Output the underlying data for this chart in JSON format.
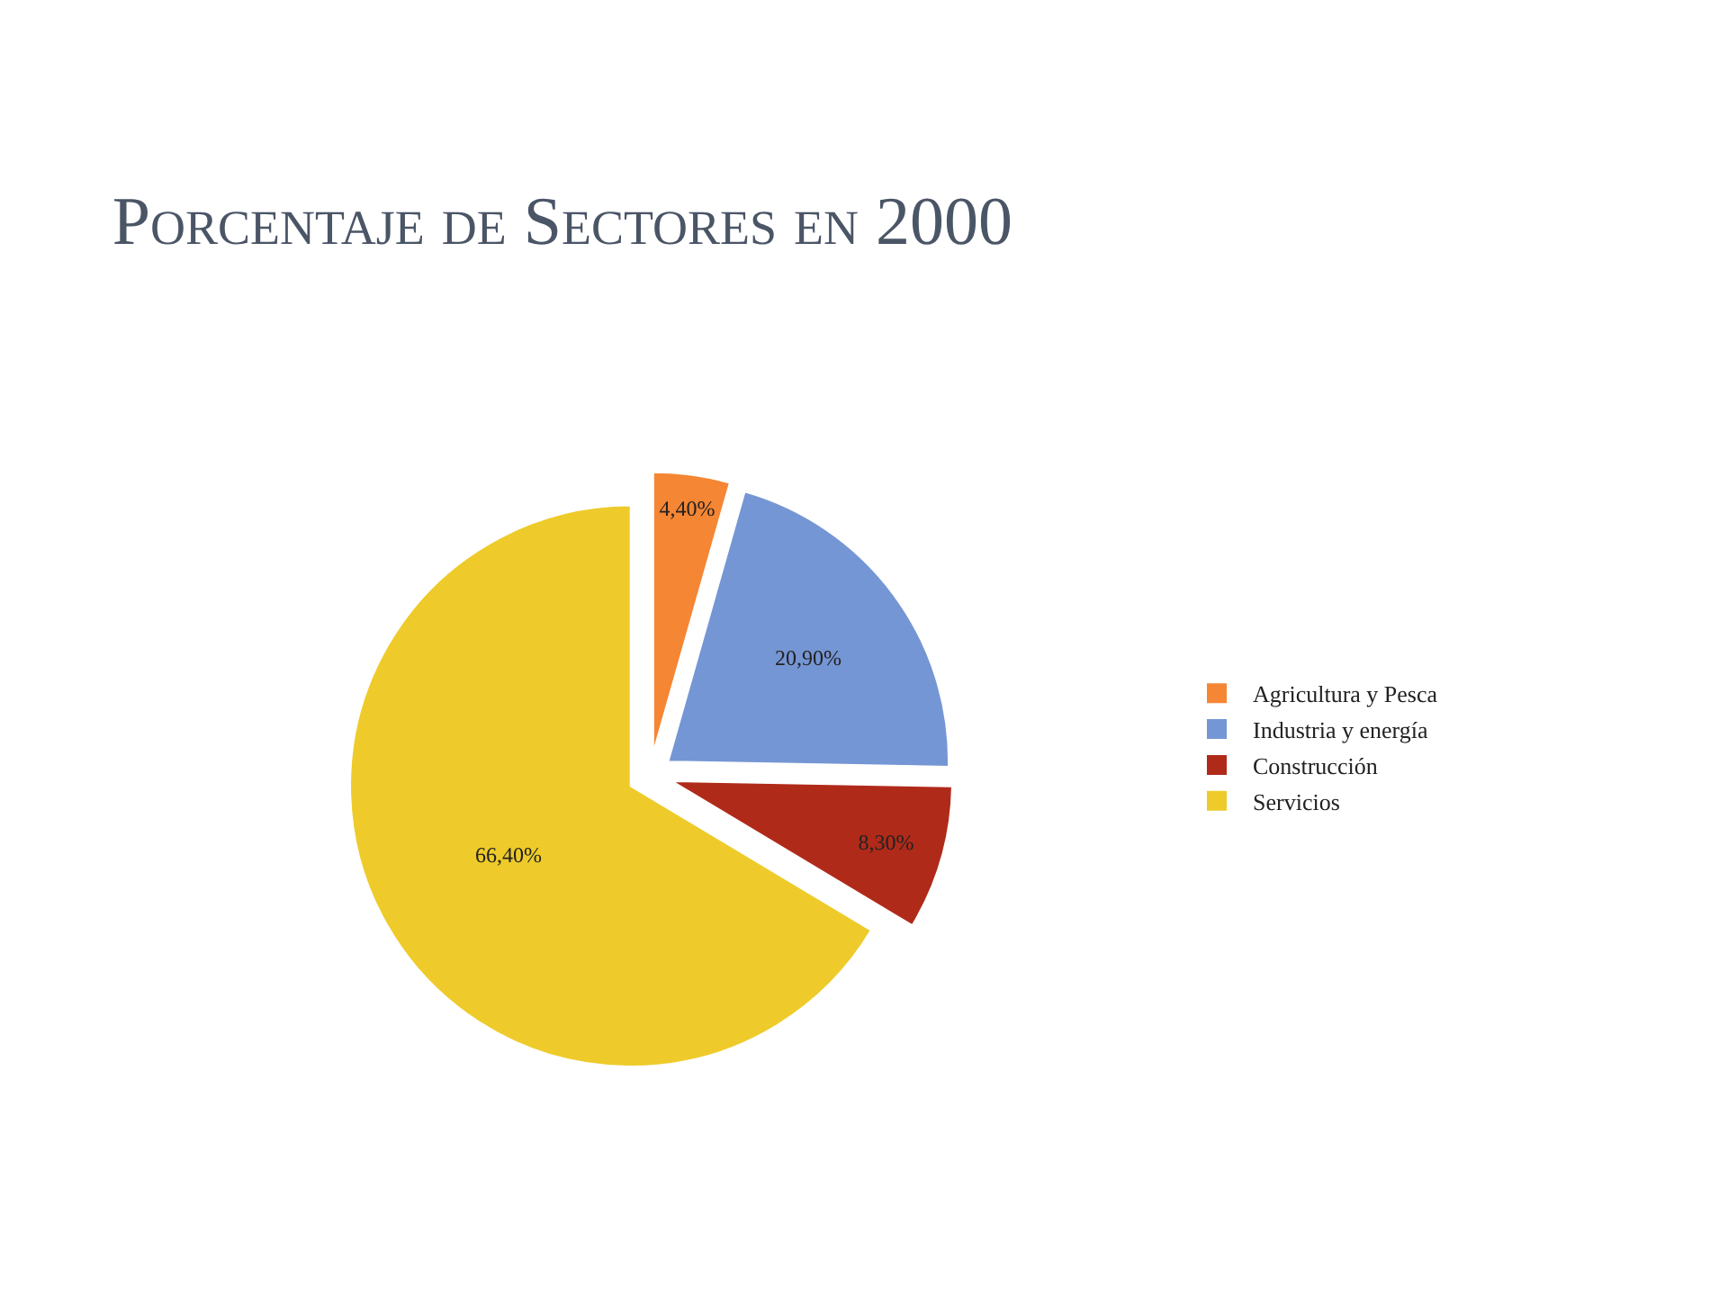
{
  "chart_data": {
    "type": "pie",
    "title": "Porcentaje de Sectores en 2000",
    "categories": [
      "Agricultura y Pesca",
      "Industria y energía",
      "Construcción",
      "Servicios"
    ],
    "values": [
      4.4,
      20.9,
      8.3,
      66.4
    ],
    "value_labels": [
      "4,40%",
      "20,90%",
      "8,30%",
      "66,40%"
    ],
    "colors": [
      "#f58634",
      "#7596d4",
      "#b02a1a",
      "#eecb2a"
    ],
    "legend": "right"
  }
}
